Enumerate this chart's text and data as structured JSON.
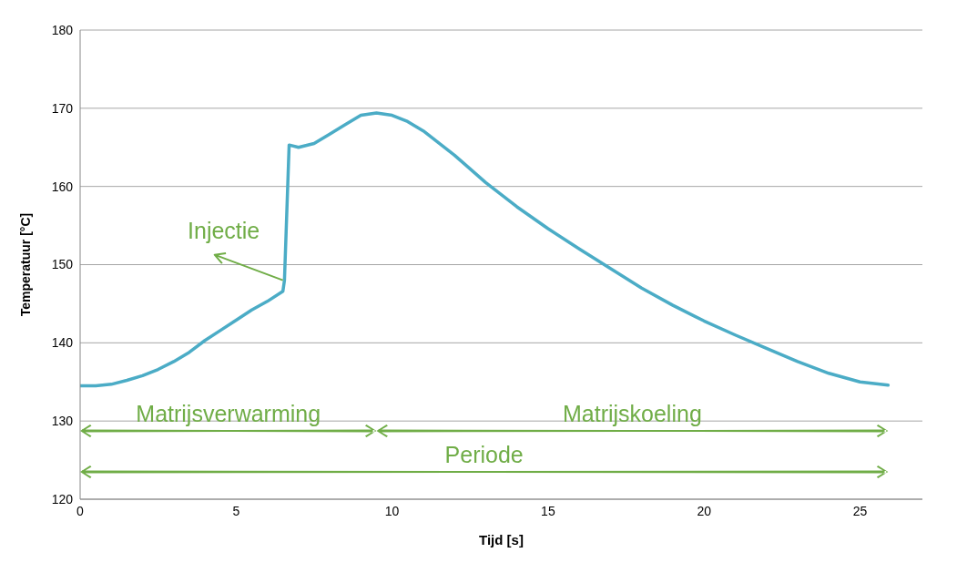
{
  "chart_data": {
    "type": "line",
    "xlabel": "Tijd [s]",
    "ylabel": "Temperatuur [°C]",
    "x": [
      0,
      0.5,
      1,
      1.5,
      2,
      2.5,
      3,
      3.5,
      4,
      4.5,
      5,
      5.5,
      6,
      6.5,
      6.55,
      6.7,
      7,
      7.5,
      8,
      8.5,
      9,
      9.5,
      10,
      10.5,
      11,
      12,
      13,
      14,
      15,
      16,
      17,
      18,
      19,
      20,
      21,
      22,
      23,
      24,
      25,
      25.9
    ],
    "series": [
      {
        "color": "#4bacc6",
        "values": [
          134.5,
          134.5,
          134.7,
          135.2,
          135.8,
          136.6,
          137.6,
          138.8,
          140.3,
          141.6,
          142.9,
          144.2,
          145.3,
          146.6,
          148,
          165.3,
          165,
          165.5,
          166.7,
          167.9,
          169.1,
          169.4,
          169.1,
          168.3,
          167.1,
          164,
          160.5,
          157.4,
          154.6,
          152,
          149.5,
          147,
          144.8,
          142.8,
          141,
          139.3,
          137.6,
          136.1,
          135,
          134.6
        ]
      }
    ],
    "xlim": [
      0,
      27
    ],
    "xticks": [
      0,
      5,
      10,
      15,
      20,
      25
    ],
    "ylim": [
      120,
      180
    ],
    "yticks": [
      120,
      130,
      140,
      150,
      160,
      170,
      180
    ],
    "grid": "y",
    "marker": "none",
    "line_style": "solid",
    "annotations": [
      {
        "text": "Injectie",
        "x": 6.5,
        "y": 148
      },
      "Matrijsverwarming",
      "Matrijskoeling",
      "Periode"
    ]
  }
}
